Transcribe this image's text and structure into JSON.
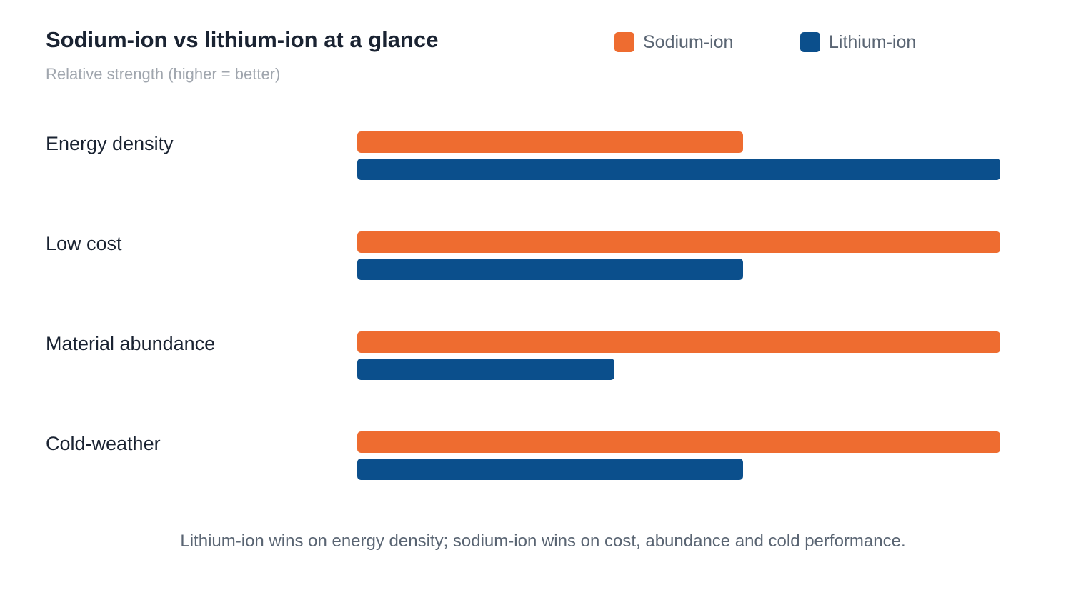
{
  "chart_data": {
    "type": "bar",
    "orientation": "horizontal",
    "title": "Sodium-ion vs lithium-ion at a glance",
    "subtitle": "Relative strength (higher = better)",
    "categories": [
      "Energy density",
      "Low cost",
      "Material abundance",
      "Cold-weather"
    ],
    "series": [
      {
        "name": "Sodium-ion",
        "color": "#ee6c30",
        "values": [
          60,
          100,
          100,
          100
        ]
      },
      {
        "name": "Lithium-ion",
        "color": "#0b4f8c",
        "values": [
          100,
          60,
          40,
          60
        ]
      }
    ],
    "xlim": [
      0,
      100
    ],
    "grid": false,
    "legend_position": "top-right",
    "footnote": "Lithium-ion wins on energy density; sodium-ion wins on cost, abundance and cold performance."
  }
}
